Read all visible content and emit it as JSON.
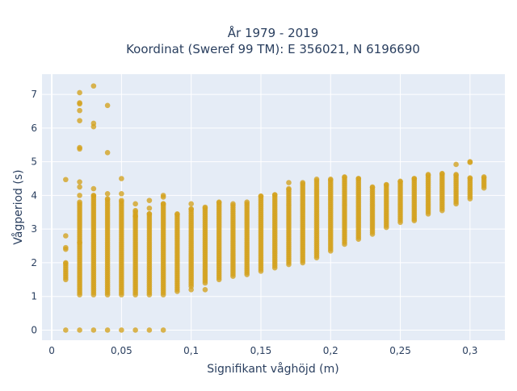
{
  "chart_data": {
    "type": "scatter",
    "title_line1": "År 1979 - 2019",
    "title_line2": "Koordinat (Sweref 99 TM): E 356021, N 6196690",
    "xlabel": "Signifikant våghöjd (m)",
    "ylabel": "Vågperiod (s)",
    "xlim": [
      -0.007,
      0.325
    ],
    "ylim": [
      -0.3,
      7.6
    ],
    "grid": true,
    "legend": "none",
    "marker_color": "#d4a11e",
    "background_color": "#e5ecf6",
    "x_ticks": [
      {
        "value": 0,
        "label": "0"
      },
      {
        "value": 0.05,
        "label": "0,05"
      },
      {
        "value": 0.1,
        "label": "0,1"
      },
      {
        "value": 0.15,
        "label": "0,15"
      },
      {
        "value": 0.2,
        "label": "0,2"
      },
      {
        "value": 0.25,
        "label": "0,25"
      },
      {
        "value": 0.3,
        "label": "0,3"
      }
    ],
    "y_ticks": [
      {
        "value": 0,
        "label": "0"
      },
      {
        "value": 1,
        "label": "1"
      },
      {
        "value": 2,
        "label": "2"
      },
      {
        "value": 3,
        "label": "3"
      },
      {
        "value": 4,
        "label": "4"
      },
      {
        "value": 5,
        "label": "5"
      },
      {
        "value": 6,
        "label": "6"
      },
      {
        "value": 7,
        "label": "7"
      }
    ],
    "columns": [
      {
        "x": 0.01,
        "y_min": 1.5,
        "y_max": 2.0,
        "outliers": [
          0,
          2.4,
          2.45,
          2.8,
          4.47
        ]
      },
      {
        "x": 0.02,
        "y_min": 1.05,
        "y_max": 3.8,
        "outliers": [
          0,
          2.6,
          4.0,
          4.25,
          4.4,
          5.38,
          5.42,
          6.22,
          6.52,
          6.72,
          6.75,
          7.05
        ]
      },
      {
        "x": 0.03,
        "y_min": 1.05,
        "y_max": 4.0,
        "outliers": [
          0,
          4.2,
          6.04,
          6.14,
          7.25
        ]
      },
      {
        "x": 0.04,
        "y_min": 1.05,
        "y_max": 3.9,
        "outliers": [
          0,
          4.05,
          5.27,
          6.67
        ]
      },
      {
        "x": 0.05,
        "y_min": 1.05,
        "y_max": 3.85,
        "outliers": [
          0,
          4.05,
          4.5
        ]
      },
      {
        "x": 0.06,
        "y_min": 1.05,
        "y_max": 3.55,
        "outliers": [
          0,
          3.75,
          3.38
        ]
      },
      {
        "x": 0.07,
        "y_min": 1.05,
        "y_max": 3.45,
        "outliers": [
          0,
          3.62,
          3.85
        ]
      },
      {
        "x": 0.08,
        "y_min": 1.05,
        "y_max": 3.75,
        "outliers": [
          0,
          3.95,
          4.0
        ]
      },
      {
        "x": 0.09,
        "y_min": 1.15,
        "y_max": 3.45,
        "outliers": []
      },
      {
        "x": 0.1,
        "y_min": 1.3,
        "y_max": 3.6,
        "outliers": [
          1.2,
          3.75
        ]
      },
      {
        "x": 0.11,
        "y_min": 1.4,
        "y_max": 3.65,
        "outliers": [
          1.2
        ]
      },
      {
        "x": 0.12,
        "y_min": 1.5,
        "y_max": 3.8,
        "outliers": []
      },
      {
        "x": 0.13,
        "y_min": 1.6,
        "y_max": 3.75,
        "outliers": []
      },
      {
        "x": 0.14,
        "y_min": 1.65,
        "y_max": 3.8,
        "outliers": []
      },
      {
        "x": 0.15,
        "y_min": 1.75,
        "y_max": 3.98,
        "outliers": []
      },
      {
        "x": 0.16,
        "y_min": 1.85,
        "y_max": 4.02,
        "outliers": []
      },
      {
        "x": 0.17,
        "y_min": 1.95,
        "y_max": 4.2,
        "outliers": [
          4.38
        ]
      },
      {
        "x": 0.18,
        "y_min": 2.0,
        "y_max": 4.38,
        "outliers": []
      },
      {
        "x": 0.19,
        "y_min": 2.15,
        "y_max": 4.48,
        "outliers": []
      },
      {
        "x": 0.2,
        "y_min": 2.35,
        "y_max": 4.48,
        "outliers": []
      },
      {
        "x": 0.21,
        "y_min": 2.55,
        "y_max": 4.55,
        "outliers": []
      },
      {
        "x": 0.22,
        "y_min": 2.7,
        "y_max": 4.5,
        "outliers": []
      },
      {
        "x": 0.23,
        "y_min": 2.85,
        "y_max": 4.25,
        "outliers": []
      },
      {
        "x": 0.24,
        "y_min": 3.05,
        "y_max": 4.32,
        "outliers": []
      },
      {
        "x": 0.25,
        "y_min": 3.2,
        "y_max": 4.42,
        "outliers": []
      },
      {
        "x": 0.26,
        "y_min": 3.3,
        "y_max": 4.5,
        "outliers": [
          3.25
        ]
      },
      {
        "x": 0.27,
        "y_min": 3.45,
        "y_max": 4.62,
        "outliers": []
      },
      {
        "x": 0.28,
        "y_min": 3.55,
        "y_max": 4.65,
        "outliers": []
      },
      {
        "x": 0.29,
        "y_min": 3.75,
        "y_max": 4.62,
        "outliers": [
          4.92
        ]
      },
      {
        "x": 0.3,
        "y_min": 3.9,
        "y_max": 4.52,
        "outliers": [
          4.98,
          5.0
        ]
      },
      {
        "x": 0.31,
        "y_min": 4.22,
        "y_max": 4.55,
        "outliers": []
      }
    ]
  }
}
